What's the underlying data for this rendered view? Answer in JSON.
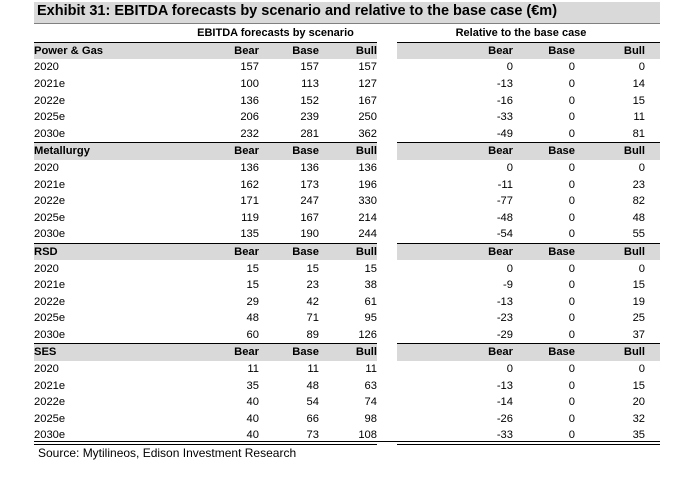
{
  "title": "Exhibit 31: EBITDA forecasts by scenario and relative to the base case (€m)",
  "group_headers": {
    "ebitda": "EBITDA forecasts by scenario",
    "relative": "Relative to the base case"
  },
  "sections": [
    {
      "name": "Power & Gas",
      "cols": [
        "Bear",
        "Base",
        "Bull",
        "Bear",
        "Base",
        "Bull"
      ],
      "rows": [
        {
          "year": "2020",
          "vals": [
            "157",
            "157",
            "157",
            "0",
            "0",
            "0"
          ]
        },
        {
          "year": "2021e",
          "vals": [
            "100",
            "113",
            "127",
            "-13",
            "0",
            "14"
          ]
        },
        {
          "year": "2022e",
          "vals": [
            "136",
            "152",
            "167",
            "-16",
            "0",
            "15"
          ]
        },
        {
          "year": "2025e",
          "vals": [
            "206",
            "239",
            "250",
            "-33",
            "0",
            "11"
          ]
        },
        {
          "year": "2030e",
          "vals": [
            "232",
            "281",
            "362",
            "-49",
            "0",
            "81"
          ]
        }
      ]
    },
    {
      "name": "Metallurgy",
      "cols": [
        "Bear",
        "Base",
        "Bull",
        "Bear",
        "Base",
        "Bull"
      ],
      "rows": [
        {
          "year": "2020",
          "vals": [
            "136",
            "136",
            "136",
            "0",
            "0",
            "0"
          ]
        },
        {
          "year": "2021e",
          "vals": [
            "162",
            "173",
            "196",
            "-11",
            "0",
            "23"
          ]
        },
        {
          "year": "2022e",
          "vals": [
            "171",
            "247",
            "330",
            "-77",
            "0",
            "82"
          ]
        },
        {
          "year": "2025e",
          "vals": [
            "119",
            "167",
            "214",
            "-48",
            "0",
            "48"
          ]
        },
        {
          "year": "2030e",
          "vals": [
            "135",
            "190",
            "244",
            "-54",
            "0",
            "55"
          ]
        }
      ]
    },
    {
      "name": "RSD",
      "cols": [
        "Bear",
        "Base",
        "Bull",
        "Bear",
        "Base",
        "Bull"
      ],
      "rows": [
        {
          "year": "2020",
          "vals": [
            "15",
            "15",
            "15",
            "0",
            "0",
            "0"
          ]
        },
        {
          "year": "2021e",
          "vals": [
            "15",
            "23",
            "38",
            "-9",
            "0",
            "15"
          ]
        },
        {
          "year": "2022e",
          "vals": [
            "29",
            "42",
            "61",
            "-13",
            "0",
            "19"
          ]
        },
        {
          "year": "2025e",
          "vals": [
            "48",
            "71",
            "95",
            "-23",
            "0",
            "25"
          ]
        },
        {
          "year": "2030e",
          "vals": [
            "60",
            "89",
            "126",
            "-29",
            "0",
            "37"
          ]
        }
      ]
    },
    {
      "name": "SES",
      "cols": [
        "Bear",
        "Base",
        "Bull",
        "Bear",
        "Base",
        "Bull"
      ],
      "rows": [
        {
          "year": "2020",
          "vals": [
            "11",
            "11",
            "11",
            "0",
            "0",
            "0"
          ]
        },
        {
          "year": "2021e",
          "vals": [
            "35",
            "48",
            "63",
            "-13",
            "0",
            "15"
          ]
        },
        {
          "year": "2022e",
          "vals": [
            "40",
            "54",
            "74",
            "-14",
            "0",
            "20"
          ]
        },
        {
          "year": "2025e",
          "vals": [
            "40",
            "66",
            "98",
            "-26",
            "0",
            "32"
          ]
        },
        {
          "year": "2030e",
          "vals": [
            "40",
            "73",
            "108",
            "-33",
            "0",
            "35"
          ]
        }
      ]
    }
  ],
  "source": "Source: Mytilineos, Edison Investment Research"
}
